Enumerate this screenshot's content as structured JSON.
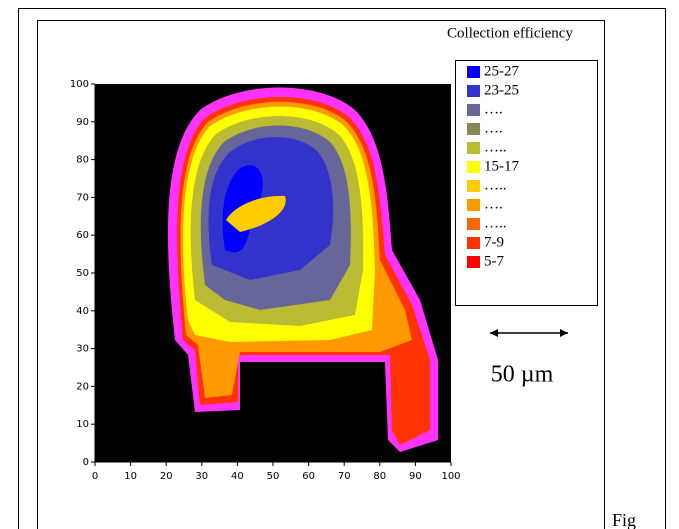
{
  "chart_data": {
    "type": "heatmap",
    "xlim": [
      0,
      100
    ],
    "xticks": [
      0,
      10,
      20,
      30,
      40,
      50,
      60,
      70,
      80,
      90,
      100
    ],
    "ylim": [
      0,
      100
    ],
    "yticks": [
      0,
      10,
      20,
      30,
      40,
      50,
      60,
      70,
      80,
      90,
      100
    ],
    "background": "#000000",
    "legend": {
      "title": "Collection efficiency",
      "items": [
        {
          "label": "25-27",
          "color": "#0000ff"
        },
        {
          "label": "23-25",
          "color": "#3333cc"
        },
        {
          "label": "….",
          "color": "#666699"
        },
        {
          "label": "….",
          "color": "#888855"
        },
        {
          "label": "…..",
          "color": "#bbbb33"
        },
        {
          "label": "15-17",
          "color": "#ffff00"
        },
        {
          "label": "…..",
          "color": "#ffcc00"
        },
        {
          "label": "….",
          "color": "#ff9900"
        },
        {
          "label": "…..",
          "color": "#ff6600"
        },
        {
          "label": "7-9",
          "color": "#ff3300"
        },
        {
          "label": "5-7",
          "color": "#ff0000"
        }
      ]
    },
    "scale_bar": "50 µm",
    "caption": "Fig"
  }
}
